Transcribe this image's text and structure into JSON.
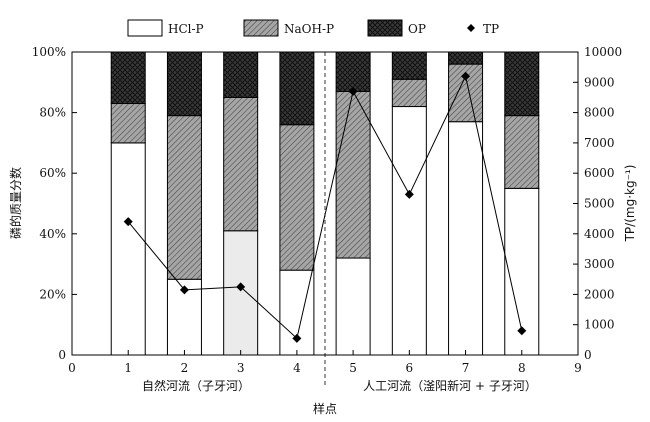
{
  "chart_data": {
    "type": "bar",
    "subtype": "stacked-percent-bar-with-line",
    "x": [
      1,
      2,
      3,
      4,
      5,
      6,
      7,
      8
    ],
    "xlim": [
      0,
      9
    ],
    "x_ticks": [
      "0",
      "1",
      "2",
      "3",
      "4",
      "5",
      "6",
      "7",
      "8",
      "9"
    ],
    "ylabel_left": "磷的质量分数",
    "ylim_left": [
      0,
      100
    ],
    "y_ticks_left": [
      "0",
      "20%",
      "40%",
      "60%",
      "80%",
      "100%"
    ],
    "ylabel_right": "TP/(mg·kg⁻¹)",
    "ylim_right": [
      0,
      10000
    ],
    "y_ticks_right": [
      "0",
      "1000",
      "2000",
      "3000",
      "4000",
      "5000",
      "6000",
      "7000",
      "8000",
      "9000",
      "10000"
    ],
    "xlabel": "样点",
    "groups": [
      {
        "label": "自然河流（子牙河）",
        "range": [
          1,
          4
        ]
      },
      {
        "label": "人工河流（滏阳新河 + 子牙河）",
        "range": [
          5,
          8
        ]
      }
    ],
    "series": [
      {
        "name": "HCl-P",
        "values": [
          70,
          25,
          41,
          28,
          32,
          82,
          77,
          55
        ],
        "color": "#ffffff"
      },
      {
        "name": "NaOH-P",
        "values": [
          13,
          54,
          44,
          48,
          55,
          9,
          19,
          24
        ],
        "color": "#b5b5b5"
      },
      {
        "name": "OP",
        "values": [
          17,
          21,
          15,
          24,
          13,
          9,
          4,
          21
        ],
        "color": "#303030"
      },
      {
        "name": "TP",
        "values": [
          4400,
          2150,
          2250,
          550,
          8700,
          5300,
          9200,
          800
        ],
        "axis": "right",
        "marker": "diamond"
      }
    ],
    "legend_position": "top",
    "grid": false
  }
}
